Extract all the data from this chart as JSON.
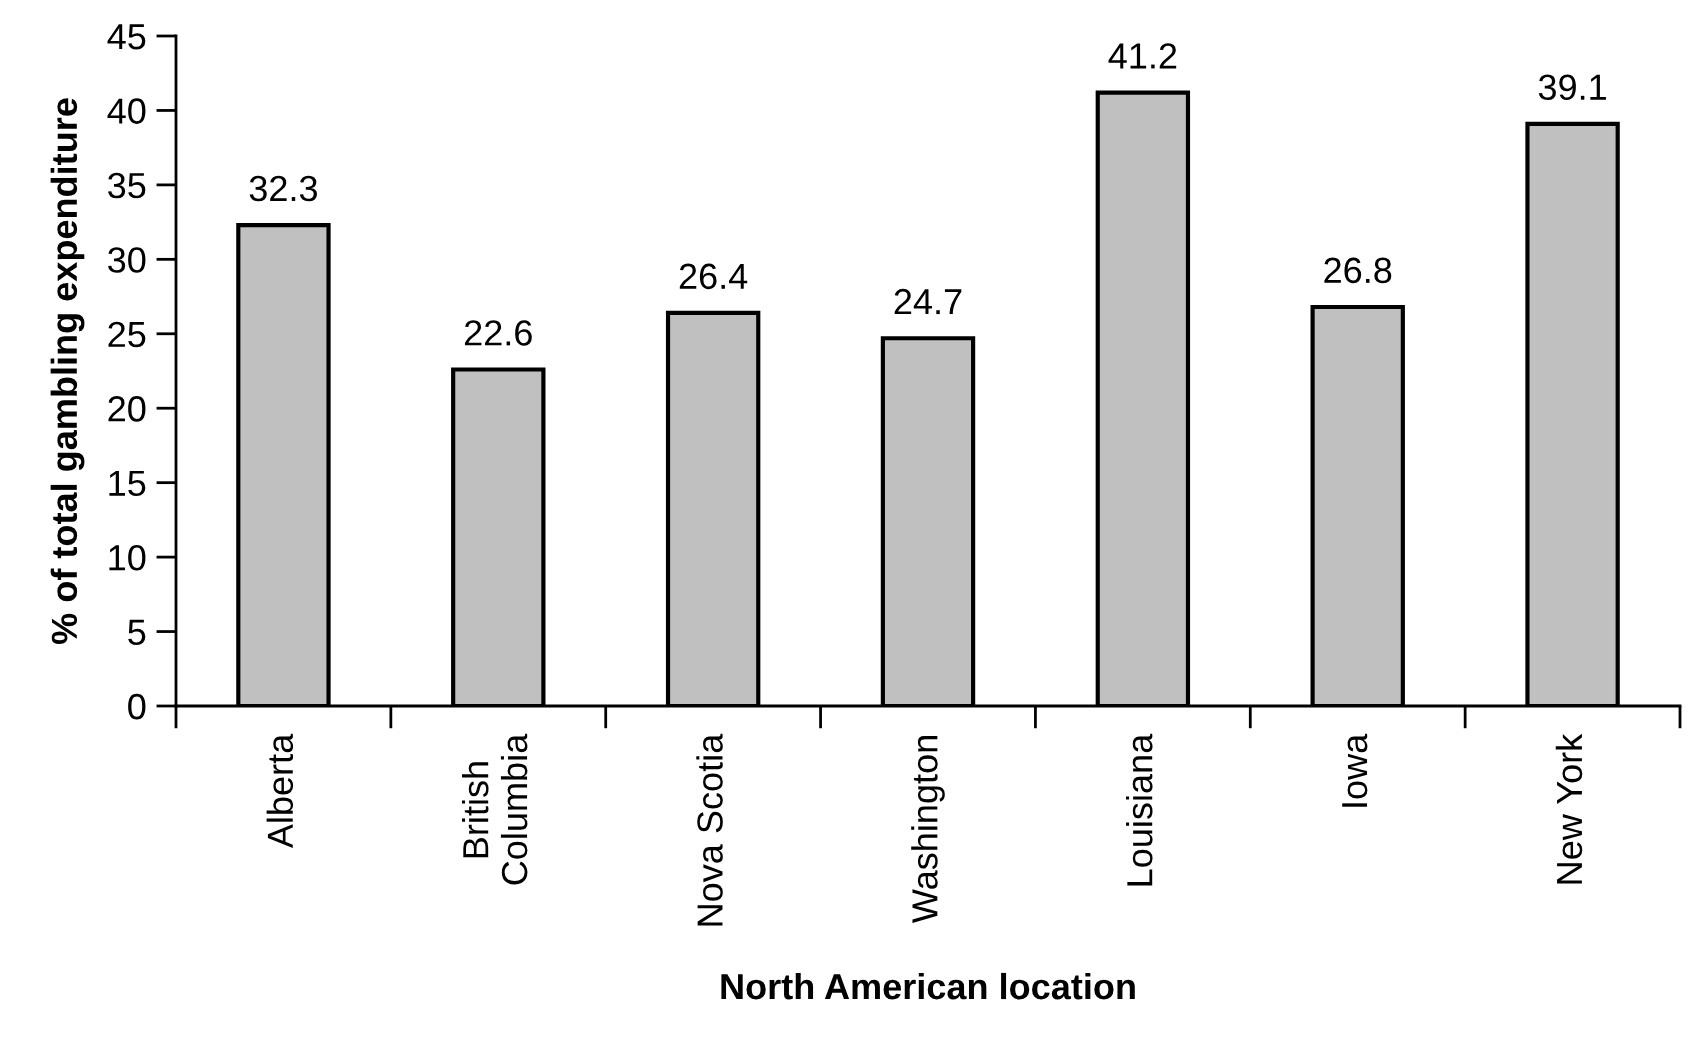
{
  "chart_data": {
    "type": "bar",
    "xlabel": "North American location",
    "ylabel": "% of total gambling expenditure",
    "categories": [
      "Alberta",
      "British\nColumbia",
      "Nova Scotia",
      "Washington",
      "Louisiana",
      "Iowa",
      "New York"
    ],
    "values": [
      32.3,
      22.6,
      26.4,
      24.7,
      41.2,
      26.8,
      39.1
    ],
    "color": "#c0c0c0",
    "ylim": [
      0,
      45
    ],
    "yticks": [
      0,
      5,
      10,
      15,
      20,
      25,
      30,
      35,
      40,
      45
    ],
    "data_labels": true,
    "grid": false,
    "legend": false
  }
}
